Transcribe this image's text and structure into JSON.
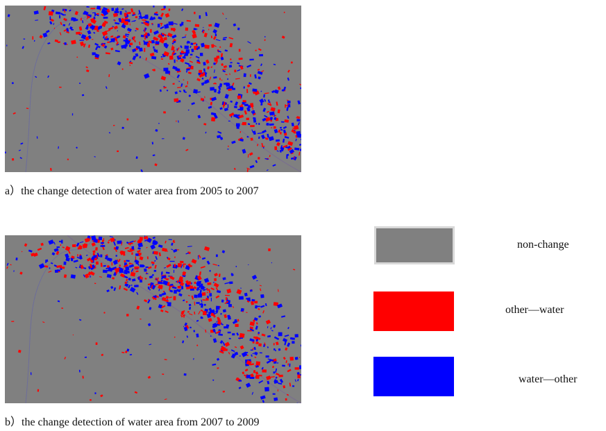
{
  "figure": {
    "panels": [
      {
        "caption": "a）the change detection of water area from 2005 to 2007"
      },
      {
        "caption": "b）the change detection of water area from 2007 to 2009"
      }
    ],
    "legend": [
      {
        "label": "non-change",
        "color": "#808080"
      },
      {
        "label": "other—water",
        "color": "#ff0000"
      },
      {
        "label": "water—other",
        "color": "#0000ff"
      }
    ]
  }
}
